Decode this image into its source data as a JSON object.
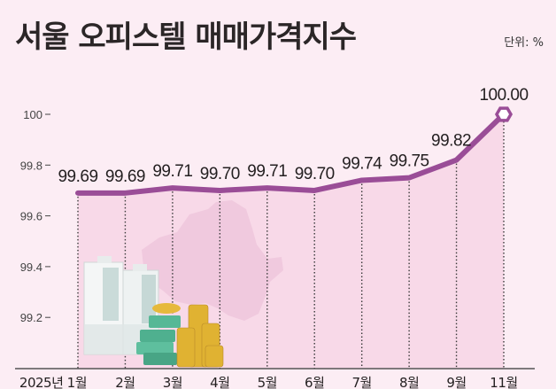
{
  "header": {
    "title": "서울 오피스텔 매매가격지수",
    "unit": "단위: %"
  },
  "colors": {
    "background": "#fcedf4",
    "area_fill": "#f8d9e8",
    "map_fill": "#eec6dc",
    "line": "#9a4d97",
    "axis": "#555555"
  },
  "chart_data": {
    "type": "line",
    "title": "서울 오피스텔 매매가격지수",
    "unit": "%",
    "xlabel": "",
    "ylabel": "",
    "categories": [
      "2025년 1월",
      "2월",
      "3월",
      "4월",
      "5월",
      "6월",
      "7월",
      "8월",
      "9월",
      "11월"
    ],
    "series": [
      {
        "name": "서울 오피스텔 매매가격지수",
        "values": [
          99.69,
          99.69,
          99.71,
          99.7,
          99.71,
          99.7,
          99.74,
          99.75,
          99.82,
          100.0
        ]
      }
    ],
    "data_labels": [
      "99.69",
      "99.69",
      "99.71",
      "99.70",
      "99.71",
      "99.70",
      "99.74",
      "99.75",
      "99.82",
      "100.00"
    ],
    "yticks": [
      "100",
      "99.8",
      "99.6",
      "99.4",
      "99.2"
    ],
    "ylim": [
      99.1,
      100.05
    ],
    "grid": false,
    "legend": "none",
    "annotations": [
      "Seoul map silhouette background",
      "building and money illustration",
      "hexagon marker on latest point"
    ]
  }
}
